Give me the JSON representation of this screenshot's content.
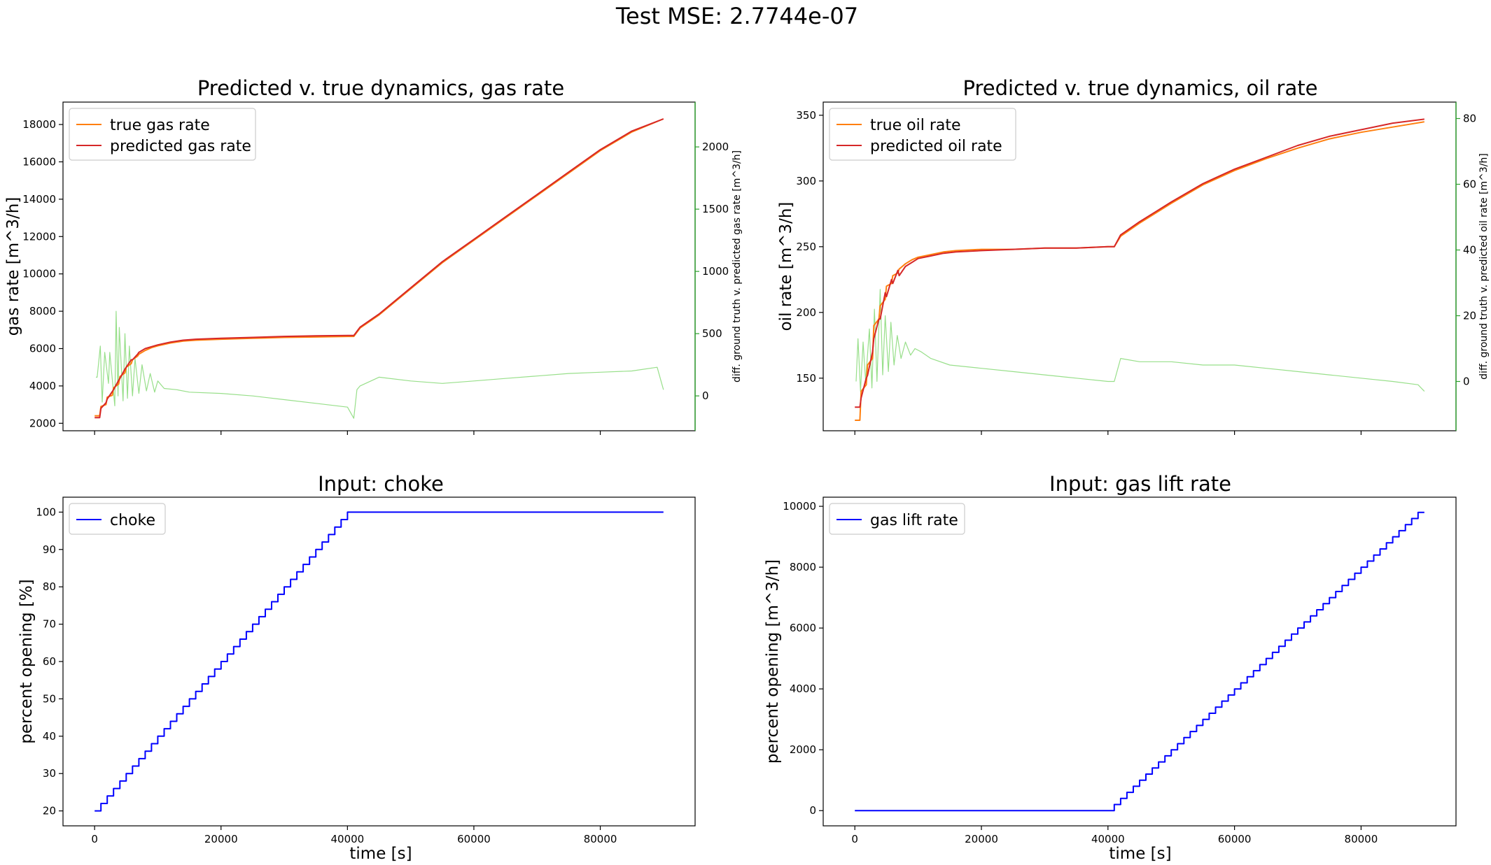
{
  "figure": {
    "suptitle": "Test MSE: 2.7744e-07"
  },
  "colors": {
    "true": "#ff7f0e",
    "predicted": "#d62728",
    "diff": "#2ca02c",
    "diff_line": "#98df8a",
    "input": "#0000ff",
    "axes": "#000000"
  },
  "chart_data": [
    {
      "id": "gas",
      "type": "line",
      "title": "Predicted v. true dynamics, gas rate",
      "xlabel": "",
      "ylabel": "gas rate [m^3/h]",
      "ylabel_right": "diff. ground truth v. predicted gas rate [m^3/h]",
      "xlim": [
        -5000,
        95000
      ],
      "ylim": [
        1600,
        19200
      ],
      "ylim_right": [
        -280,
        2360
      ],
      "xticks": [
        0,
        20000,
        40000,
        60000,
        80000
      ],
      "xtick_labels_visible": false,
      "yticks": [
        2000,
        4000,
        6000,
        8000,
        10000,
        12000,
        14000,
        16000,
        18000
      ],
      "yticks_right": [
        0,
        500,
        1000,
        1500,
        2000
      ],
      "legend": {
        "placement": "upper left",
        "entries": [
          "true gas rate",
          "predicted gas rate"
        ]
      },
      "series": [
        {
          "name": "true gas rate",
          "role": "true",
          "x": [
            0,
            800,
            1000,
            1800,
            2000,
            2800,
            3000,
            3800,
            4000,
            4800,
            5000,
            5800,
            6000,
            6800,
            7000,
            8000,
            9000,
            10000,
            12000,
            14000,
            16000,
            20000,
            25000,
            30000,
            35000,
            40000,
            41000,
            42000,
            45000,
            50000,
            55000,
            60000,
            65000,
            70000,
            75000,
            80000,
            85000,
            90000
          ],
          "values": [
            2400,
            2400,
            2900,
            3000,
            3400,
            3500,
            3900,
            4100,
            4500,
            4700,
            5000,
            5200,
            5400,
            5600,
            5700,
            5900,
            6050,
            6150,
            6300,
            6400,
            6450,
            6500,
            6550,
            6600,
            6620,
            6650,
            6650,
            7100,
            7800,
            9200,
            10600,
            11800,
            13000,
            14200,
            15400,
            16600,
            17600,
            18300
          ]
        },
        {
          "name": "predicted gas rate",
          "role": "predicted",
          "x": [
            0,
            800,
            1000,
            1800,
            2000,
            2800,
            3000,
            3800,
            4000,
            4800,
            5000,
            5800,
            6000,
            6800,
            7000,
            8000,
            9000,
            10000,
            12000,
            14000,
            16000,
            20000,
            25000,
            30000,
            35000,
            40000,
            41000,
            42000,
            45000,
            50000,
            55000,
            60000,
            65000,
            70000,
            75000,
            80000,
            85000,
            90000
          ],
          "values": [
            2300,
            2300,
            2800,
            3100,
            3300,
            3700,
            3800,
            4300,
            4400,
            4900,
            5000,
            5400,
            5400,
            5700,
            5800,
            6000,
            6100,
            6200,
            6350,
            6450,
            6500,
            6550,
            6600,
            6650,
            6680,
            6700,
            6700,
            7150,
            7850,
            9250,
            10650,
            11850,
            13050,
            14250,
            15450,
            16650,
            17650,
            18300
          ]
        },
        {
          "name": "",
          "role": "diff",
          "axis": "right",
          "x": [
            200,
            400,
            900,
            1200,
            1600,
            2200,
            2400,
            3200,
            3400,
            3700,
            3900,
            4500,
            4800,
            5200,
            5500,
            6000,
            6400,
            7000,
            7500,
            8200,
            8800,
            9500,
            10000,
            11000,
            13000,
            15000,
            20000,
            25000,
            30000,
            35000,
            40000,
            41000,
            41500,
            42000,
            45000,
            50000,
            55000,
            60000,
            65000,
            70000,
            75000,
            80000,
            85000,
            89000,
            90000
          ],
          "values": [
            150,
            150,
            400,
            -50,
            350,
            100,
            350,
            -80,
            680,
            0,
            550,
            -40,
            500,
            -20,
            400,
            0,
            300,
            20,
            250,
            40,
            180,
            30,
            120,
            60,
            50,
            30,
            20,
            0,
            -30,
            -60,
            -90,
            -180,
            50,
            80,
            150,
            120,
            100,
            120,
            140,
            160,
            180,
            190,
            200,
            230,
            50
          ]
        }
      ]
    },
    {
      "id": "oil",
      "type": "line",
      "title": "Predicted v. true dynamics, oil rate",
      "xlabel": "",
      "ylabel": "oil rate [m^3/h]",
      "ylabel_right": "diff. ground truth v. predicted oil rate [m^3/h]",
      "xlim": [
        -5000,
        95000
      ],
      "ylim": [
        110,
        360
      ],
      "ylim_right": [
        -15,
        85
      ],
      "xticks": [
        0,
        20000,
        40000,
        60000,
        80000
      ],
      "xtick_labels_visible": false,
      "yticks": [
        150,
        200,
        250,
        300,
        350
      ],
      "yticks_right": [
        0,
        20,
        40,
        60,
        80
      ],
      "legend": {
        "placement": "upper left",
        "entries": [
          "true oil rate",
          "predicted oil rate"
        ]
      },
      "series": [
        {
          "name": "true oil rate",
          "role": "true",
          "x": [
            0,
            800,
            1000,
            1800,
            2000,
            2800,
            3000,
            3800,
            4000,
            4800,
            5000,
            5800,
            6000,
            6800,
            7000,
            8000,
            9000,
            10000,
            12000,
            14000,
            16000,
            20000,
            25000,
            30000,
            35000,
            40000,
            41000,
            42000,
            45000,
            50000,
            55000,
            60000,
            65000,
            70000,
            75000,
            80000,
            85000,
            90000
          ],
          "values": [
            118,
            118,
            140,
            145,
            160,
            165,
            190,
            195,
            205,
            210,
            220,
            222,
            228,
            230,
            233,
            237,
            240,
            242,
            244,
            246,
            247,
            248,
            248,
            249,
            249,
            250,
            250,
            258,
            268,
            283,
            297,
            308,
            317,
            325,
            332,
            337,
            341,
            345
          ]
        },
        {
          "name": "predicted oil rate",
          "role": "predicted",
          "x": [
            0,
            800,
            1000,
            1800,
            2000,
            2800,
            3000,
            3800,
            4000,
            4800,
            5000,
            5800,
            6000,
            6800,
            7000,
            8000,
            9000,
            10000,
            12000,
            14000,
            16000,
            20000,
            25000,
            30000,
            35000,
            40000,
            41000,
            42000,
            45000,
            50000,
            55000,
            60000,
            65000,
            70000,
            75000,
            80000,
            85000,
            90000
          ],
          "values": [
            128,
            128,
            135,
            150,
            152,
            170,
            180,
            195,
            195,
            215,
            212,
            225,
            222,
            232,
            228,
            235,
            238,
            241,
            243,
            245,
            246,
            247,
            248,
            249,
            249,
            250,
            250,
            259,
            269,
            284,
            298,
            309,
            318,
            327,
            334,
            339,
            344,
            347
          ]
        },
        {
          "name": "",
          "role": "diff",
          "axis": "right",
          "x": [
            200,
            500,
            900,
            1300,
            1700,
            2300,
            2700,
            3100,
            3500,
            4000,
            4400,
            4800,
            5300,
            5700,
            6200,
            6700,
            7300,
            8000,
            8800,
            9500,
            10500,
            12000,
            15000,
            20000,
            25000,
            30000,
            35000,
            40000,
            41000,
            42000,
            45000,
            50000,
            55000,
            60000,
            65000,
            70000,
            75000,
            80000,
            85000,
            89000,
            90000
          ],
          "values": [
            0,
            13,
            -3,
            12,
            0,
            16,
            -2,
            22,
            0,
            28,
            2,
            20,
            3,
            18,
            5,
            14,
            7,
            12,
            8,
            10,
            9,
            7,
            5,
            4,
            3,
            2,
            1,
            0,
            0,
            7,
            6,
            6,
            5,
            5,
            4,
            3,
            2,
            1,
            0,
            -1,
            -3
          ]
        }
      ]
    },
    {
      "id": "choke",
      "type": "line",
      "title": "Input: choke",
      "xlabel": "time [s]",
      "ylabel": "percent opening [%]",
      "xlim": [
        -5000,
        95000
      ],
      "ylim": [
        16,
        104
      ],
      "xticks": [
        0,
        20000,
        40000,
        60000,
        80000
      ],
      "yticks": [
        20,
        30,
        40,
        50,
        60,
        70,
        80,
        90,
        100
      ],
      "legend": {
        "placement": "upper left",
        "entries": [
          "choke"
        ]
      },
      "series": [
        {
          "name": "choke",
          "role": "input",
          "step": "post",
          "x": [
            0,
            1000,
            2000,
            3000,
            4000,
            5000,
            6000,
            7000,
            8000,
            9000,
            10000,
            11000,
            12000,
            13000,
            14000,
            15000,
            16000,
            17000,
            18000,
            19000,
            20000,
            21000,
            22000,
            23000,
            24000,
            25000,
            26000,
            27000,
            28000,
            29000,
            30000,
            31000,
            32000,
            33000,
            34000,
            35000,
            36000,
            37000,
            38000,
            39000,
            40000,
            90000
          ],
          "values": [
            20,
            22,
            24,
            26,
            28,
            30,
            32,
            34,
            36,
            38,
            40,
            42,
            44,
            46,
            48,
            50,
            52,
            54,
            56,
            58,
            60,
            62,
            64,
            66,
            68,
            70,
            72,
            74,
            76,
            78,
            80,
            82,
            84,
            86,
            88,
            90,
            92,
            94,
            96,
            98,
            100,
            100
          ]
        }
      ]
    },
    {
      "id": "gaslift",
      "type": "line",
      "title": "Input: gas lift rate",
      "xlabel": "time [s]",
      "ylabel": "percent opening [m^3/h]",
      "xlim": [
        -5000,
        95000
      ],
      "ylim": [
        -500,
        10300
      ],
      "xticks": [
        0,
        20000,
        40000,
        60000,
        80000
      ],
      "yticks": [
        0,
        2000,
        4000,
        6000,
        8000,
        10000
      ],
      "legend": {
        "placement": "upper left",
        "entries": [
          "gas lift rate"
        ]
      },
      "series": [
        {
          "name": "gas lift rate",
          "role": "input",
          "step": "post",
          "x": [
            0,
            40000,
            41000,
            42000,
            43000,
            44000,
            45000,
            46000,
            47000,
            48000,
            49000,
            50000,
            51000,
            52000,
            53000,
            54000,
            55000,
            56000,
            57000,
            58000,
            59000,
            60000,
            61000,
            62000,
            63000,
            64000,
            65000,
            66000,
            67000,
            68000,
            69000,
            70000,
            71000,
            72000,
            73000,
            74000,
            75000,
            76000,
            77000,
            78000,
            79000,
            80000,
            81000,
            82000,
            83000,
            84000,
            85000,
            86000,
            87000,
            88000,
            89000,
            90000
          ],
          "values": [
            0,
            0,
            200,
            400,
            600,
            800,
            1000,
            1200,
            1400,
            1600,
            1800,
            2000,
            2200,
            2400,
            2600,
            2800,
            3000,
            3200,
            3400,
            3600,
            3800,
            4000,
            4200,
            4400,
            4600,
            4800,
            5000,
            5200,
            5400,
            5600,
            5800,
            6000,
            6200,
            6400,
            6600,
            6800,
            7000,
            7200,
            7400,
            7600,
            7800,
            8000,
            8200,
            8400,
            8600,
            8800,
            9000,
            9200,
            9400,
            9600,
            9800,
            9800
          ]
        }
      ]
    }
  ]
}
